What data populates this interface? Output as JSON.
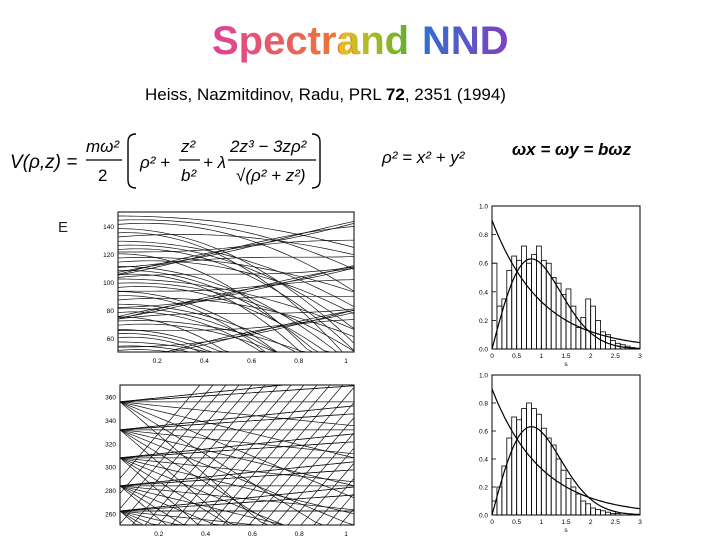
{
  "slide": {
    "title_words": [
      {
        "text": "Spectra",
        "colors": [
          "#e0409a",
          "#f08020"
        ]
      },
      {
        "text": "and",
        "colors": [
          "#f0c020",
          "#60b030"
        ]
      },
      {
        "text": "NND",
        "colors": [
          "#3070d0",
          "#8040c0"
        ]
      }
    ],
    "citation": {
      "authors": "Heiss, Nazmitdinov, Radu, PRL ",
      "volume": "72",
      "rest": ", 2351 (1994)"
    },
    "equations": {
      "potential_lhs": "V(ρ,z) =",
      "prefactor_num": "mω²",
      "prefactor_den": "2",
      "term_rho": "ρ² +",
      "term_z_num": "z²",
      "term_z_den": "b²",
      "term_lambda": "+ λ",
      "lambda_num": "2z³ − 3zρ²",
      "lambda_den": "√(ρ² + z²)",
      "rho_def": "ρ² = x² + y²",
      "omega_def": "ωx = ωy = bωz"
    },
    "energy_label": "E"
  },
  "spectrum_top": {
    "y_ticks": [
      "140",
      "120",
      "100",
      "80",
      "60"
    ],
    "x_ticks": [
      "0.2",
      "0.4",
      "0.6",
      "0.8",
      "1"
    ]
  },
  "spectrum_bottom": {
    "y_ticks": [
      "360",
      "340",
      "320",
      "300",
      "280",
      "260"
    ],
    "x_ticks": [
      "0.2",
      "0.4",
      "0.6",
      "0.8",
      "1"
    ]
  },
  "chart_data": [
    {
      "type": "bar",
      "title": "",
      "xlabel": "s",
      "ylabel": "",
      "xlim": [
        0,
        3
      ],
      "ylim": [
        0,
        1.0
      ],
      "x_ticks": [
        "0",
        "0.5",
        "1",
        "1.5",
        "2",
        "2.5",
        "3"
      ],
      "y_ticks": [
        "0.0",
        "0.2",
        "0.4",
        "0.6",
        "0.8",
        "1.0"
      ],
      "bin_width": 0.1,
      "bin_start": 0,
      "values": [
        0.6,
        0.3,
        0.35,
        0.55,
        0.65,
        0.62,
        0.72,
        0.6,
        0.66,
        0.72,
        0.62,
        0.6,
        0.5,
        0.46,
        0.38,
        0.42,
        0.3,
        0.15,
        0.22,
        0.35,
        0.3,
        0.2,
        0.12,
        0.1,
        0.06,
        0.04,
        0.03,
        0.02,
        0.01,
        0.0
      ],
      "curves": [
        "poisson",
        "wigner"
      ]
    },
    {
      "type": "bar",
      "title": "",
      "xlabel": "s",
      "ylabel": "",
      "xlim": [
        0,
        3
      ],
      "ylim": [
        0,
        1.0
      ],
      "x_ticks": [
        "0",
        "0.5",
        "1",
        "1.5",
        "2",
        "2.5",
        "3"
      ],
      "y_ticks": [
        "0.0",
        "0.2",
        "0.4",
        "0.6",
        "0.8",
        "1.0"
      ],
      "bin_width": 0.1,
      "bin_start": 0,
      "values": [
        0.1,
        0.2,
        0.35,
        0.55,
        0.7,
        0.68,
        0.76,
        0.8,
        0.76,
        0.72,
        0.62,
        0.55,
        0.5,
        0.4,
        0.32,
        0.26,
        0.2,
        0.15,
        0.1,
        0.08,
        0.05,
        0.04,
        0.03,
        0.02,
        0.01,
        0.01,
        0.0,
        0.0,
        0.0,
        0.0
      ],
      "curves": [
        "poisson",
        "wigner"
      ]
    }
  ]
}
